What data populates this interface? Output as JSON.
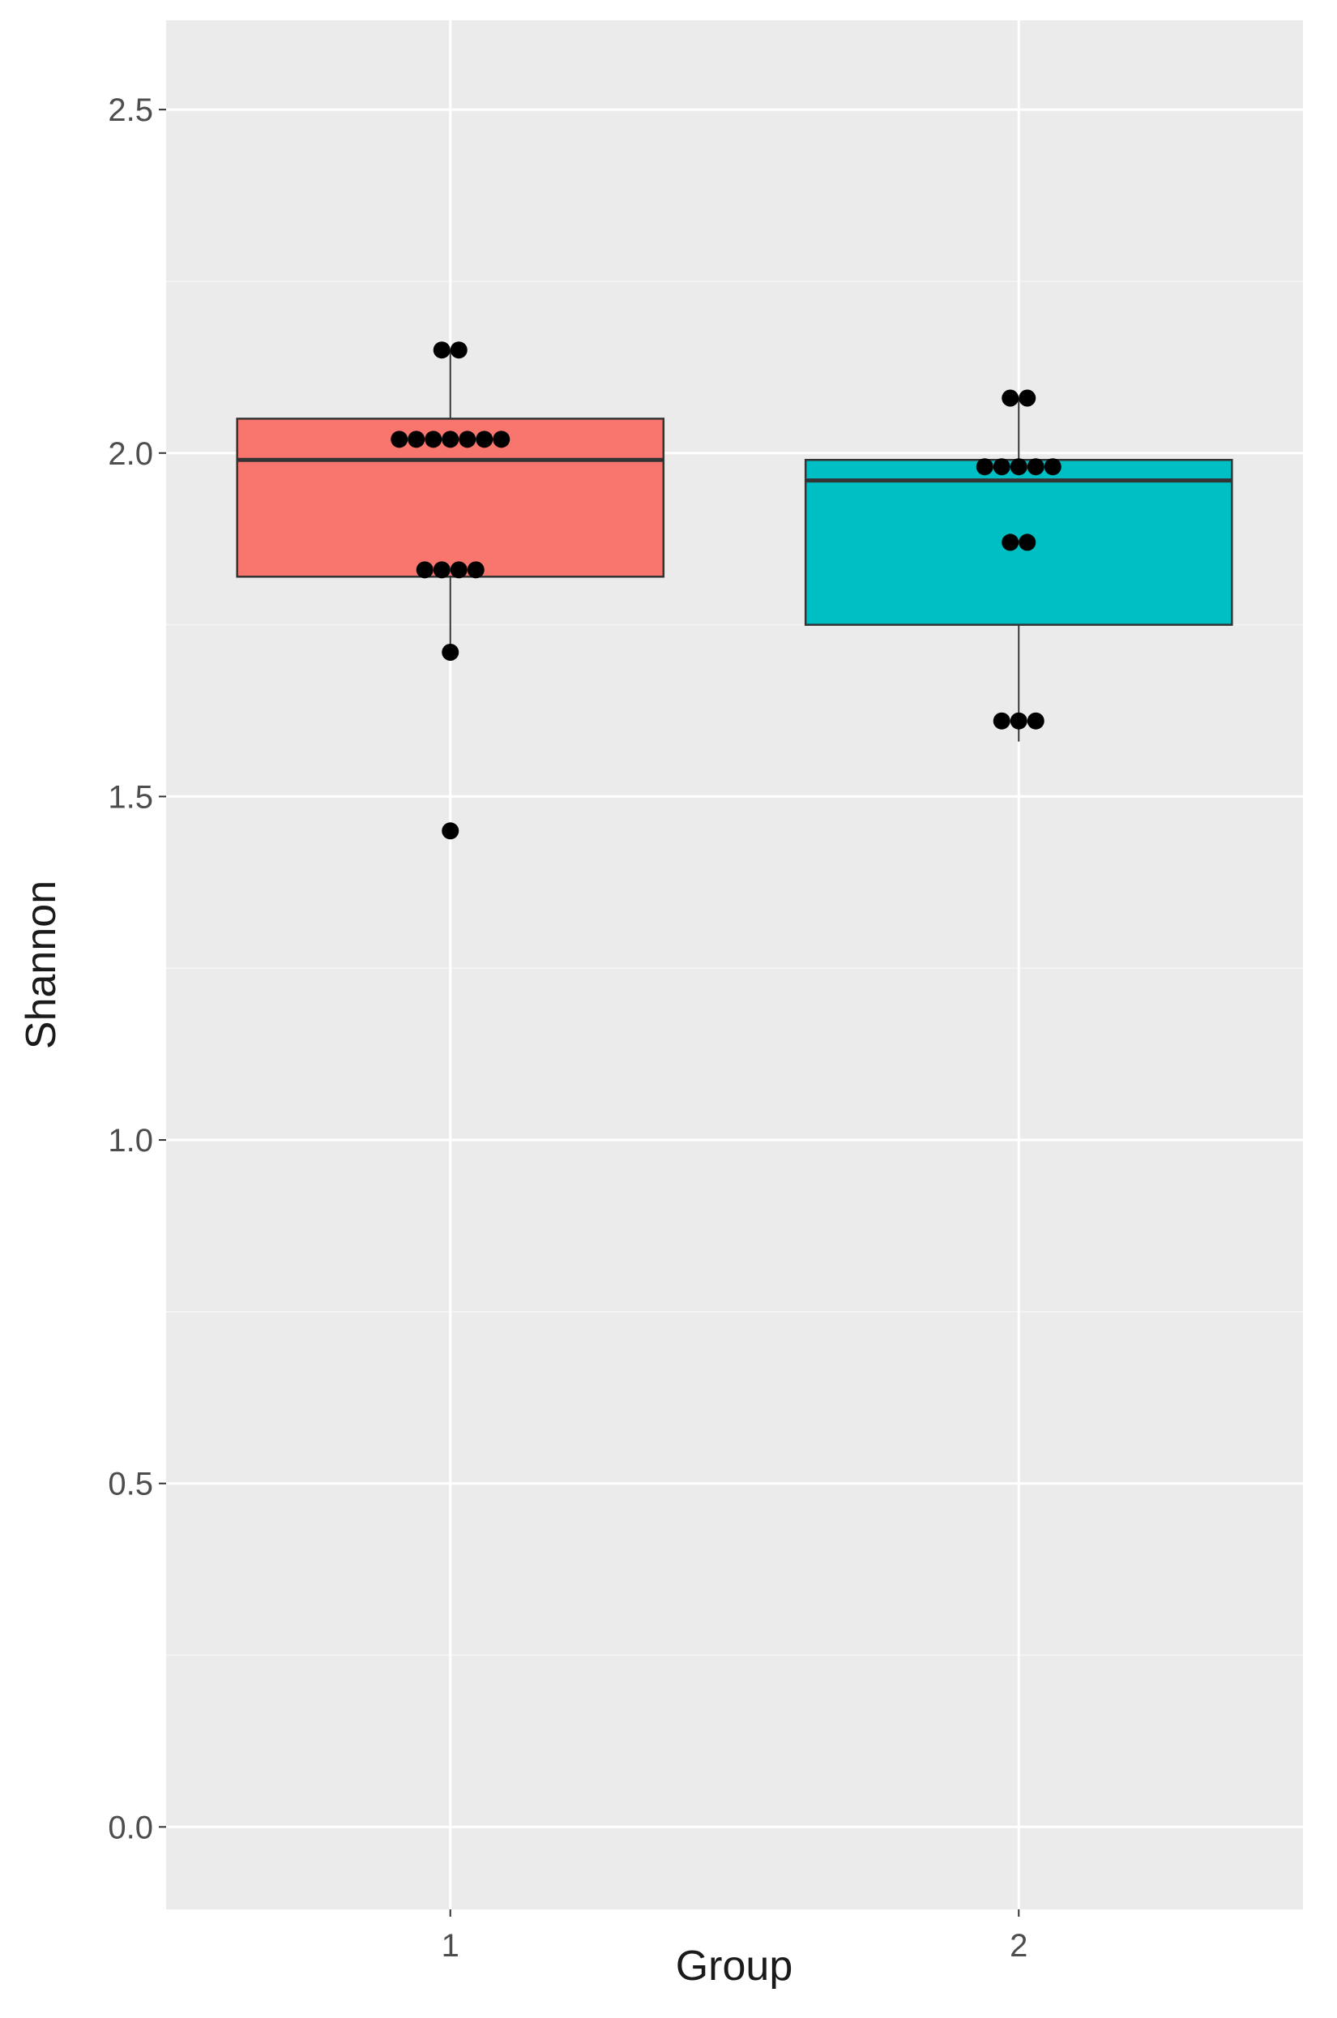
{
  "chart_data": {
    "type": "box",
    "xlabel": "Group",
    "ylabel": "Shannon",
    "categories": [
      "1",
      "2"
    ],
    "ylim": [
      -0.12,
      2.63
    ],
    "y_ticks": [
      "0.0",
      "0.5",
      "1.0",
      "1.5",
      "2.0",
      "2.5"
    ],
    "grid": true,
    "legend": "none",
    "colors": {
      "panel_background": "#EBEBEB",
      "grid_major": "#FFFFFF",
      "grid_minor": "#F5F5F5",
      "box_outline": "#333333",
      "point": "#000000"
    },
    "boxes": [
      {
        "category": "1",
        "fill": "#F8766D",
        "whisker_low": 1.71,
        "q1": 1.82,
        "median": 1.99,
        "q3": 2.05,
        "whisker_high": 2.15,
        "points": [
          2.15,
          2.15,
          2.02,
          2.02,
          2.02,
          2.02,
          2.02,
          2.02,
          2.02,
          1.83,
          1.83,
          1.83,
          1.83,
          1.71,
          1.45
        ]
      },
      {
        "category": "2",
        "fill": "#00BFC4",
        "whisker_low": 1.58,
        "q1": 1.75,
        "median": 1.96,
        "q3": 1.99,
        "whisker_high": 2.08,
        "points": [
          2.08,
          2.08,
          1.98,
          1.98,
          1.98,
          1.98,
          1.98,
          1.87,
          1.87,
          1.61,
          1.61,
          1.61
        ]
      }
    ]
  }
}
